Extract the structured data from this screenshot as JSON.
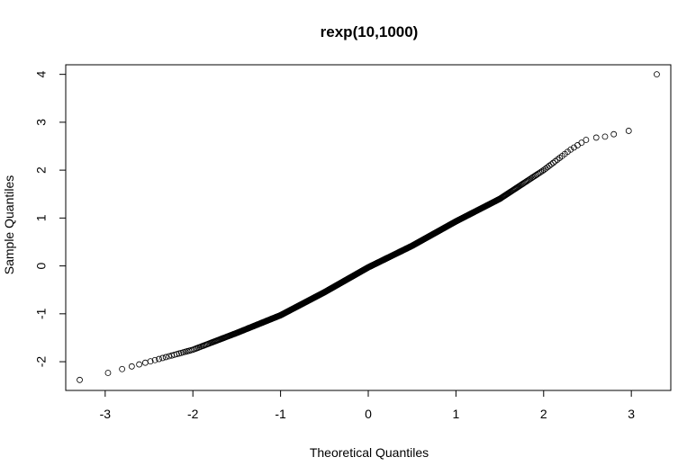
{
  "chart_data": {
    "type": "scatter",
    "title": "rexp(10,1000)",
    "xlabel": "Theoretical Quantiles",
    "ylabel": "Sample Quantiles",
    "xlim": [
      -3.45,
      3.45
    ],
    "ylim": [
      -2.6,
      4.2
    ],
    "xticks": [
      -3,
      -2,
      -1,
      0,
      1,
      2,
      3
    ],
    "yticks": [
      -2,
      -1,
      0,
      1,
      2,
      3,
      4
    ],
    "grid": false,
    "marker": "open-circle",
    "point_color": "#000000",
    "curve_anchors": [
      [
        -3.29,
        -2.38
      ],
      [
        -3.0,
        -2.25
      ],
      [
        -2.8,
        -2.15
      ],
      [
        -2.5,
        -2.0
      ],
      [
        -2.0,
        -1.75
      ],
      [
        -1.5,
        -1.4
      ],
      [
        -1.0,
        -1.03
      ],
      [
        -0.5,
        -0.55
      ],
      [
        0.0,
        -0.03
      ],
      [
        0.5,
        0.42
      ],
      [
        1.0,
        0.93
      ],
      [
        1.5,
        1.4
      ],
      [
        2.0,
        2.0
      ],
      [
        2.3,
        2.42
      ],
      [
        2.5,
        2.65
      ]
    ],
    "tail_points": [
      [
        2.6,
        2.68
      ],
      [
        2.7,
        2.7
      ],
      [
        2.8,
        2.75
      ],
      [
        2.97,
        2.82
      ],
      [
        3.29,
        4.0
      ]
    ]
  }
}
